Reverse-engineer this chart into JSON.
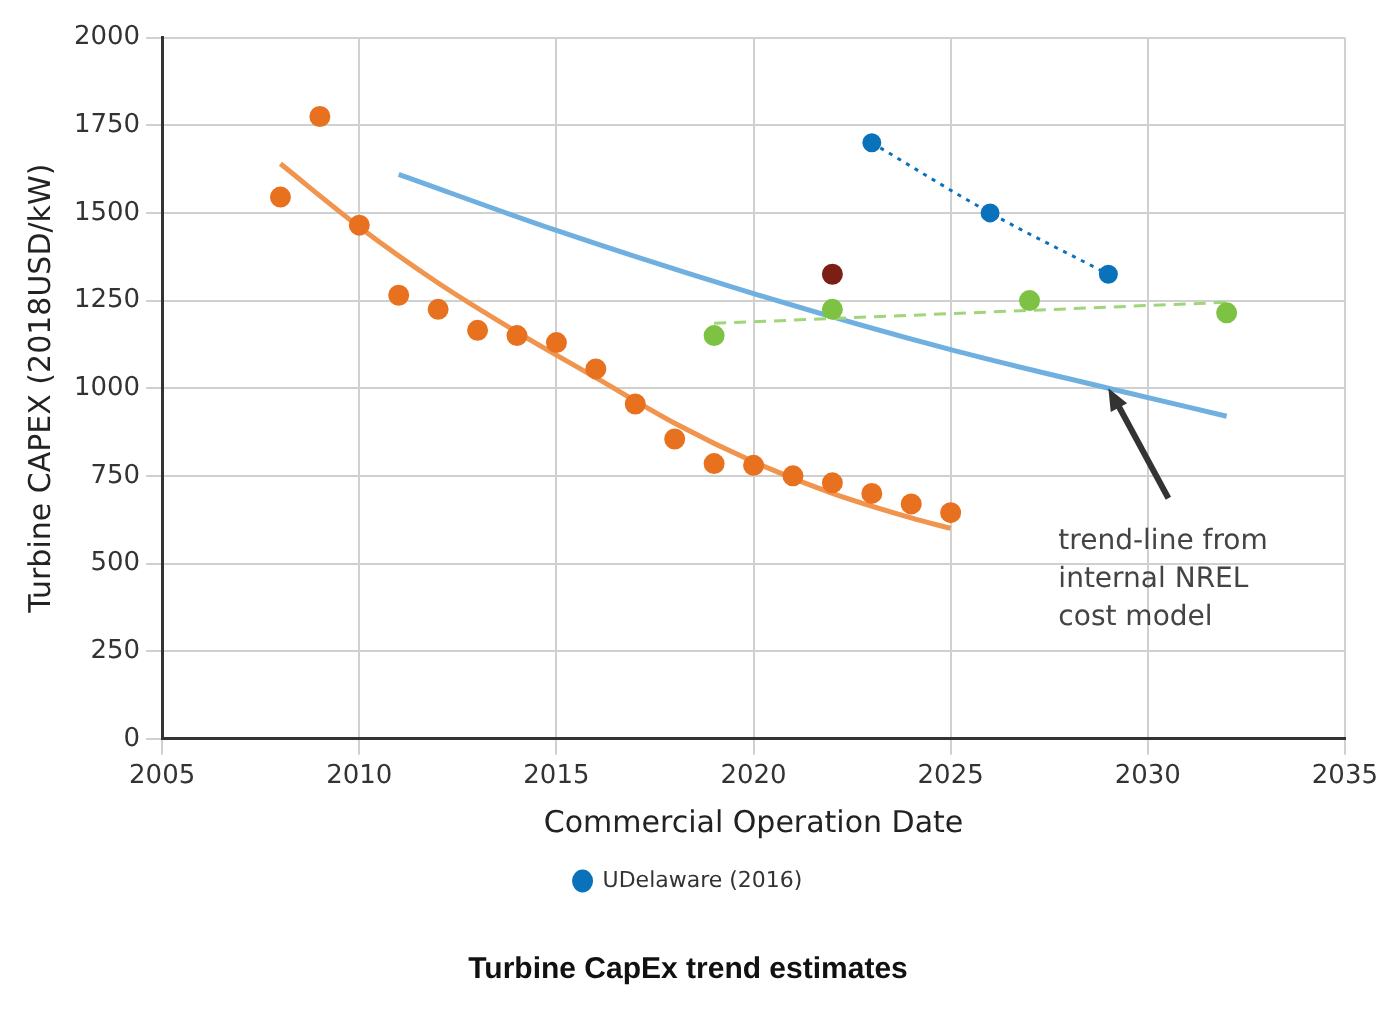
{
  "chart_data": {
    "type": "scatter",
    "title": "Turbine CapEx trend estimates",
    "xlabel": "Commercial Operation Date",
    "ylabel": "Turbine CAPEX (2018USD/kW)",
    "xlim": [
      2005,
      2035
    ],
    "xticks": [
      2005,
      2010,
      2015,
      2020,
      2025,
      2030,
      2035
    ],
    "ylim": [
      0,
      2000
    ],
    "yticks": [
      0,
      250,
      500,
      750,
      1000,
      1250,
      1500,
      1750,
      2000
    ],
    "grid": true,
    "legend": "bottom",
    "annotations": [
      {
        "text": "trend-line from internal NREL cost model",
        "x": 2029,
        "y": 1000
      }
    ],
    "series": [
      {
        "type": "scatter",
        "color": "#7dc242",
        "marker": "circle",
        "x": [
          2019,
          2022,
          2027,
          2032
        ],
        "values": [
          1150,
          1225,
          1250,
          1215
        ]
      },
      {
        "name": "UDelaware (2016)",
        "type": "line",
        "color": "#0a72ba",
        "marker": "circle",
        "line_style": "dotted",
        "x": [
          2023,
          2026,
          2029
        ],
        "values": [
          1700,
          1500,
          1325
        ]
      },
      {
        "type": "scatter",
        "color": "#7b1e14",
        "marker": "circle",
        "x": [
          2022
        ],
        "values": [
          1325
        ]
      },
      {
        "type": "scatter",
        "color": "#e8711f",
        "marker": "circle",
        "x": [
          2008,
          2009,
          2010,
          2011,
          2012,
          2013,
          2014,
          2015,
          2016,
          2017,
          2018,
          2019,
          2020,
          2021,
          2022,
          2023,
          2024,
          2025
        ],
        "values": [
          1545,
          1775,
          1465,
          1265,
          1225,
          1165,
          1150,
          1130,
          1055,
          955,
          855,
          785,
          780,
          750,
          730,
          700,
          670,
          645
        ]
      },
      {
        "type": "line",
        "color": "#f0944e",
        "marker": "none",
        "line_style": "solid",
        "x": [
          2008,
          2010,
          2012,
          2014,
          2016,
          2018,
          2020,
          2022,
          2024,
          2025
        ],
        "values": [
          1640,
          1460,
          1300,
          1160,
          1030,
          900,
          790,
          700,
          630,
          600
        ]
      },
      {
        "type": "line",
        "color": "#9fd67a",
        "marker": "none",
        "line_style": "dashed",
        "x": [
          2019,
          2032
        ],
        "values": [
          1185,
          1245
        ]
      },
      {
        "type": "line",
        "color": "#6fb0e0",
        "marker": "none",
        "line_style": "solid",
        "x": [
          2011,
          2015,
          2020,
          2025,
          2029,
          2032
        ],
        "values": [
          1610,
          1450,
          1270,
          1110,
          1000,
          920
        ]
      }
    ]
  }
}
